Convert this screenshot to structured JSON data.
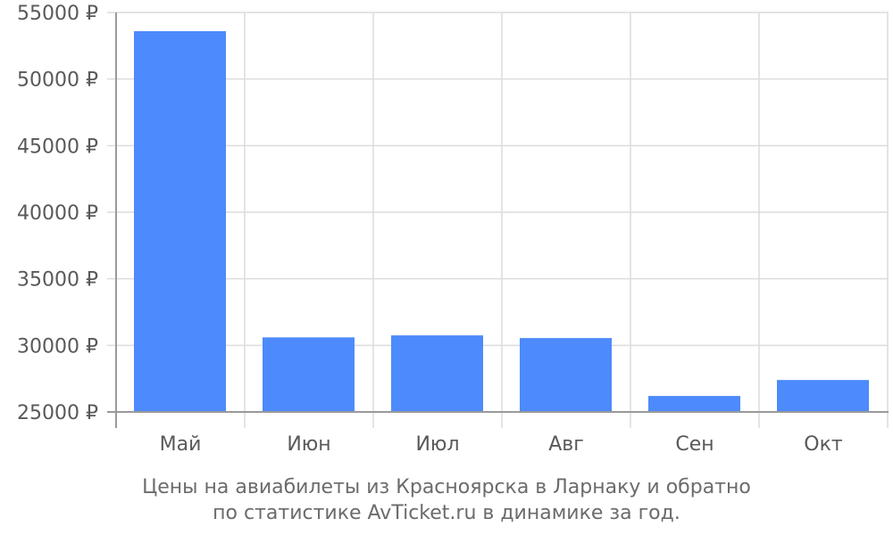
{
  "caption": {
    "line1": "Цены на авиабилеты из Красноярска в Ларнаку и обратно",
    "line2": "по статистике AvTicket.ru в динамике за год."
  },
  "chart_data": {
    "type": "bar",
    "categories": [
      "Май",
      "Июн",
      "Июл",
      "Авг",
      "Сен",
      "Окт"
    ],
    "values": [
      53600,
      30600,
      30750,
      30550,
      26200,
      27400
    ],
    "ylim": [
      25000,
      55000
    ],
    "yticks": [
      25000,
      30000,
      35000,
      40000,
      45000,
      50000,
      55000
    ],
    "ytick_suffix": " ₽",
    "grid": true,
    "colors": {
      "bar": "#4d8afb",
      "grid": "#dcdcdc",
      "axis": "#9a9a9a"
    }
  }
}
